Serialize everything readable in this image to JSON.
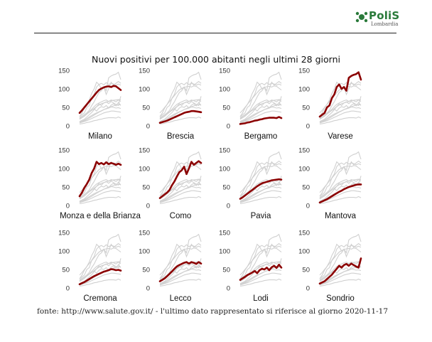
{
  "logo": {
    "brand": "PoliS",
    "region": "Lombardia"
  },
  "colors": {
    "highlight": "#8b0000",
    "context": "#d0d0d0",
    "brand": "#2a7a3a"
  },
  "footer": "fonte: http://www.salute.gov.it/ - l'ultimo dato rappresentato si riferisce al giorno 2020-11-17",
  "chart_data": {
    "type": "line",
    "title": "Nuovi positivi per 100.000 abitanti negli ultimi 28 giorni",
    "ylim": [
      0,
      150
    ],
    "yticks": [
      "0",
      "50",
      "100",
      "150"
    ],
    "grid": false,
    "x": [
      1,
      2,
      3,
      4,
      5,
      6,
      7,
      8,
      9,
      10,
      11,
      12,
      13,
      14,
      15,
      16,
      17,
      18
    ],
    "series": [
      {
        "name": "Milano",
        "values": [
          35,
          42,
          50,
          58,
          66,
          74,
          82,
          90,
          97,
          101,
          104,
          106,
          107,
          105,
          108,
          107,
          102,
          97
        ]
      },
      {
        "name": "Brescia",
        "values": [
          8,
          10,
          12,
          14,
          17,
          20,
          23,
          26,
          29,
          32,
          35,
          37,
          38,
          40,
          40,
          39,
          38,
          37
        ]
      },
      {
        "name": "Bergamo",
        "values": [
          5,
          6,
          7,
          9,
          10,
          12,
          14,
          15,
          17,
          18,
          20,
          21,
          22,
          22,
          22,
          21,
          24,
          21
        ]
      },
      {
        "name": "Varese",
        "values": [
          25,
          30,
          35,
          50,
          55,
          75,
          85,
          105,
          112,
          100,
          105,
          95,
          130,
          135,
          138,
          140,
          145,
          125
        ]
      },
      {
        "name": "Monza e della Brianza",
        "values": [
          25,
          35,
          48,
          58,
          70,
          88,
          100,
          118,
          112,
          115,
          111,
          117,
          112,
          115,
          113,
          110,
          113,
          110
        ]
      },
      {
        "name": "Como",
        "values": [
          20,
          25,
          30,
          35,
          42,
          55,
          65,
          78,
          90,
          95,
          105,
          85,
          100,
          118,
          110,
          115,
          120,
          115
        ]
      },
      {
        "name": "Pavia",
        "values": [
          18,
          22,
          27,
          32,
          37,
          42,
          47,
          52,
          56,
          60,
          62,
          64,
          66,
          68,
          69,
          70,
          71,
          70
        ]
      },
      {
        "name": "Mantova",
        "values": [
          8,
          11,
          14,
          17,
          21,
          25,
          29,
          33,
          37,
          40,
          44,
          47,
          50,
          52,
          54,
          56,
          57,
          57
        ]
      },
      {
        "name": "Cremona",
        "values": [
          10,
          13,
          16,
          20,
          24,
          28,
          32,
          35,
          38,
          41,
          44,
          46,
          48,
          51,
          50,
          48,
          49,
          47
        ]
      },
      {
        "name": "Lecco",
        "values": [
          18,
          22,
          26,
          32,
          38,
          45,
          52,
          58,
          62,
          65,
          68,
          70,
          66,
          70,
          68,
          65,
          70,
          66
        ]
      },
      {
        "name": "Lodi",
        "values": [
          22,
          26,
          30,
          35,
          38,
          42,
          46,
          40,
          48,
          52,
          50,
          55,
          48,
          56,
          60,
          54,
          63,
          55
        ]
      },
      {
        "name": "Sondrio",
        "values": [
          12,
          15,
          18,
          24,
          30,
          36,
          44,
          52,
          60,
          55,
          62,
          65,
          60,
          66,
          62,
          58,
          55,
          80
        ]
      }
    ]
  }
}
